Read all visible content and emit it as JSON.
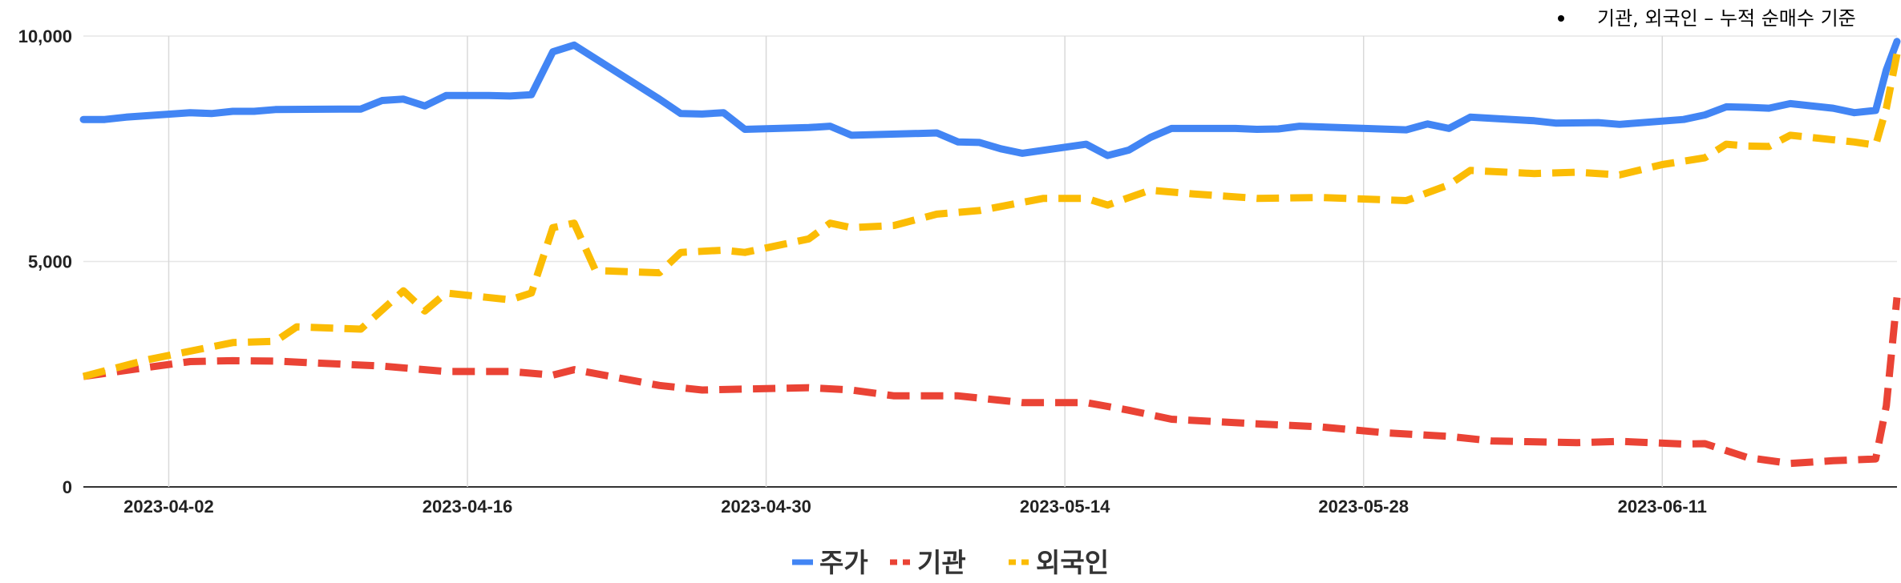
{
  "chart_data": {
    "type": "line",
    "note": "기관, 외국인 – 누적 순매수 기준",
    "ylim": [
      0,
      10000
    ],
    "y_ticks": [
      0,
      5000,
      10000
    ],
    "y_tick_labels": [
      "0",
      "5,000",
      "10,000"
    ],
    "x_range": [
      "2023-03-29",
      "2023-06-22"
    ],
    "x_ticks": [
      "2023-04-02",
      "2023-04-16",
      "2023-04-30",
      "2023-05-14",
      "2023-05-28",
      "2023-06-11"
    ],
    "grid": true,
    "legend_position": "bottom-center",
    "series": [
      {
        "name": "주가",
        "color": "#4285F4",
        "dash": "solid",
        "points": [
          [
            "2023-03-29",
            8150
          ],
          [
            "2023-03-30",
            8150
          ],
          [
            "2023-03-31",
            8200
          ],
          [
            "2023-04-03",
            8300
          ],
          [
            "2023-04-04",
            8280
          ],
          [
            "2023-04-05",
            8330
          ],
          [
            "2023-04-06",
            8330
          ],
          [
            "2023-04-07",
            8370
          ],
          [
            "2023-04-10",
            8380
          ],
          [
            "2023-04-11",
            8380
          ],
          [
            "2023-04-12",
            8570
          ],
          [
            "2023-04-13",
            8600
          ],
          [
            "2023-04-14",
            8450
          ],
          [
            "2023-04-15",
            8680
          ],
          [
            "2023-04-17",
            8680
          ],
          [
            "2023-04-18",
            8670
          ],
          [
            "2023-04-19",
            8700
          ],
          [
            "2023-04-20",
            9650
          ],
          [
            "2023-04-21",
            9800
          ],
          [
            "2023-04-25",
            8600
          ],
          [
            "2023-04-26",
            8280
          ],
          [
            "2023-04-27",
            8270
          ],
          [
            "2023-04-28",
            8300
          ],
          [
            "2023-04-29",
            7930
          ],
          [
            "2023-05-02",
            7970
          ],
          [
            "2023-05-03",
            8000
          ],
          [
            "2023-05-04",
            7800
          ],
          [
            "2023-05-08",
            7850
          ],
          [
            "2023-05-09",
            7650
          ],
          [
            "2023-05-10",
            7640
          ],
          [
            "2023-05-11",
            7500
          ],
          [
            "2023-05-12",
            7400
          ],
          [
            "2023-05-15",
            7600
          ],
          [
            "2023-05-16",
            7350
          ],
          [
            "2023-05-17",
            7470
          ],
          [
            "2023-05-18",
            7750
          ],
          [
            "2023-05-19",
            7950
          ],
          [
            "2023-05-22",
            7950
          ],
          [
            "2023-05-23",
            7930
          ],
          [
            "2023-05-24",
            7940
          ],
          [
            "2023-05-25",
            8000
          ],
          [
            "2023-05-30",
            7920
          ],
          [
            "2023-05-31",
            8050
          ],
          [
            "2023-06-01",
            7950
          ],
          [
            "2023-06-02",
            8200
          ],
          [
            "2023-06-05",
            8120
          ],
          [
            "2023-06-06",
            8070
          ],
          [
            "2023-06-08",
            8080
          ],
          [
            "2023-06-09",
            8040
          ],
          [
            "2023-06-12",
            8150
          ],
          [
            "2023-06-13",
            8250
          ],
          [
            "2023-06-14",
            8430
          ],
          [
            "2023-06-15",
            8420
          ],
          [
            "2023-06-16",
            8400
          ],
          [
            "2023-06-17",
            8500
          ],
          [
            "2023-06-19",
            8400
          ],
          [
            "2023-06-20",
            8300
          ],
          [
            "2023-06-21",
            8350
          ],
          [
            "2023-06-21.5",
            9250
          ],
          [
            "2023-06-22",
            9880
          ]
        ]
      },
      {
        "name": "기관",
        "color": "#EA4335",
        "dash": "dashed",
        "points": [
          [
            "2023-03-29",
            2450
          ],
          [
            "2023-04-01",
            2650
          ],
          [
            "2023-04-03",
            2780
          ],
          [
            "2023-04-05",
            2800
          ],
          [
            "2023-04-07",
            2790
          ],
          [
            "2023-04-12",
            2680
          ],
          [
            "2023-04-15",
            2560
          ],
          [
            "2023-04-18",
            2560
          ],
          [
            "2023-04-20",
            2480
          ],
          [
            "2023-04-21",
            2600
          ],
          [
            "2023-04-25",
            2250
          ],
          [
            "2023-04-27",
            2150
          ],
          [
            "2023-05-02",
            2200
          ],
          [
            "2023-05-04",
            2150
          ],
          [
            "2023-05-06",
            2020
          ],
          [
            "2023-05-09",
            2020
          ],
          [
            "2023-05-12",
            1870
          ],
          [
            "2023-05-15",
            1870
          ],
          [
            "2023-05-17",
            1700
          ],
          [
            "2023-05-19",
            1500
          ],
          [
            "2023-05-23",
            1400
          ],
          [
            "2023-05-26",
            1330
          ],
          [
            "2023-05-29",
            1200
          ],
          [
            "2023-06-01",
            1120
          ],
          [
            "2023-06-03",
            1020
          ],
          [
            "2023-06-07",
            980
          ],
          [
            "2023-06-09",
            1010
          ],
          [
            "2023-06-12",
            950
          ],
          [
            "2023-06-13",
            960
          ],
          [
            "2023-06-15",
            650
          ],
          [
            "2023-06-17",
            520
          ],
          [
            "2023-06-19",
            580
          ],
          [
            "2023-06-21",
            620
          ],
          [
            "2023-06-21.5",
            1800
          ],
          [
            "2023-06-22",
            4200
          ]
        ]
      },
      {
        "name": "외국인",
        "color": "#FBBC04",
        "dash": "dashed",
        "points": [
          [
            "2023-03-29",
            2450
          ],
          [
            "2023-04-01",
            2820
          ],
          [
            "2023-04-05",
            3200
          ],
          [
            "2023-04-07",
            3230
          ],
          [
            "2023-04-08",
            3550
          ],
          [
            "2023-04-11",
            3500
          ],
          [
            "2023-04-13",
            4350
          ],
          [
            "2023-04-14",
            3900
          ],
          [
            "2023-04-15",
            4300
          ],
          [
            "2023-04-18",
            4150
          ],
          [
            "2023-04-19",
            4300
          ],
          [
            "2023-04-20",
            5750
          ],
          [
            "2023-04-21",
            5850
          ],
          [
            "2023-04-22",
            4800
          ],
          [
            "2023-04-25",
            4750
          ],
          [
            "2023-04-26",
            5200
          ],
          [
            "2023-04-28",
            5250
          ],
          [
            "2023-04-29",
            5200
          ],
          [
            "2023-05-02",
            5500
          ],
          [
            "2023-05-03",
            5850
          ],
          [
            "2023-05-04",
            5750
          ],
          [
            "2023-05-06",
            5800
          ],
          [
            "2023-05-08",
            6050
          ],
          [
            "2023-05-10",
            6130
          ],
          [
            "2023-05-13",
            6400
          ],
          [
            "2023-05-15",
            6400
          ],
          [
            "2023-05-16",
            6250
          ],
          [
            "2023-05-18",
            6580
          ],
          [
            "2023-05-20",
            6500
          ],
          [
            "2023-05-23",
            6400
          ],
          [
            "2023-05-26",
            6420
          ],
          [
            "2023-05-30",
            6350
          ],
          [
            "2023-06-01",
            6700
          ],
          [
            "2023-06-02",
            7020
          ],
          [
            "2023-06-05",
            6950
          ],
          [
            "2023-06-07",
            6980
          ],
          [
            "2023-06-09",
            6920
          ],
          [
            "2023-06-11",
            7150
          ],
          [
            "2023-06-13",
            7300
          ],
          [
            "2023-06-14",
            7600
          ],
          [
            "2023-06-15",
            7560
          ],
          [
            "2023-06-16",
            7550
          ],
          [
            "2023-06-17",
            7800
          ],
          [
            "2023-06-20",
            7650
          ],
          [
            "2023-06-21",
            7580
          ],
          [
            "2023-06-21.5",
            8400
          ],
          [
            "2023-06-22",
            9600
          ]
        ]
      }
    ]
  }
}
